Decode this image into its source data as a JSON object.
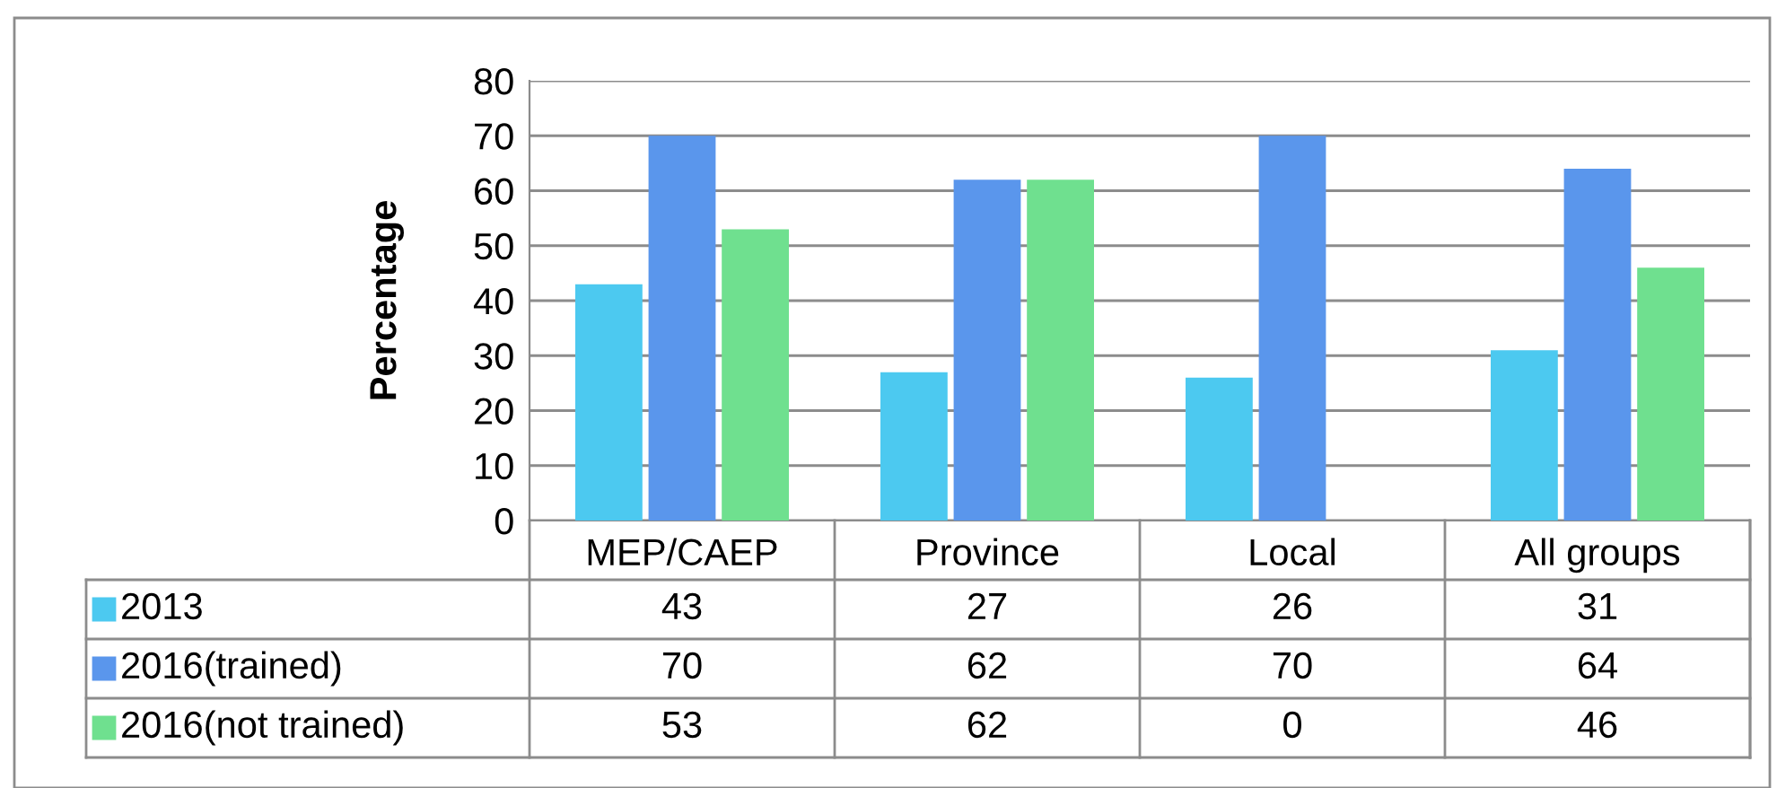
{
  "chart_data": {
    "type": "bar",
    "ylabel": "Percentage",
    "categories": [
      "MEP/CAEP",
      "Province",
      "Local",
      "All groups"
    ],
    "series": [
      {
        "name": "2013",
        "color": "#4cc9f0",
        "values": [
          43,
          27,
          26,
          31
        ]
      },
      {
        "name": "2016(trained)",
        "color": "#5a96ec",
        "values": [
          70,
          62,
          70,
          64
        ]
      },
      {
        "name": "2016(not trained)",
        "color": "#6fe08f",
        "values": [
          53,
          62,
          0,
          46
        ]
      }
    ],
    "ylim": [
      0,
      80
    ],
    "yticks": [
      0,
      10,
      20,
      30,
      40,
      50,
      60,
      70,
      80
    ],
    "grid": "y",
    "legend": "left",
    "data_labels": true
  }
}
